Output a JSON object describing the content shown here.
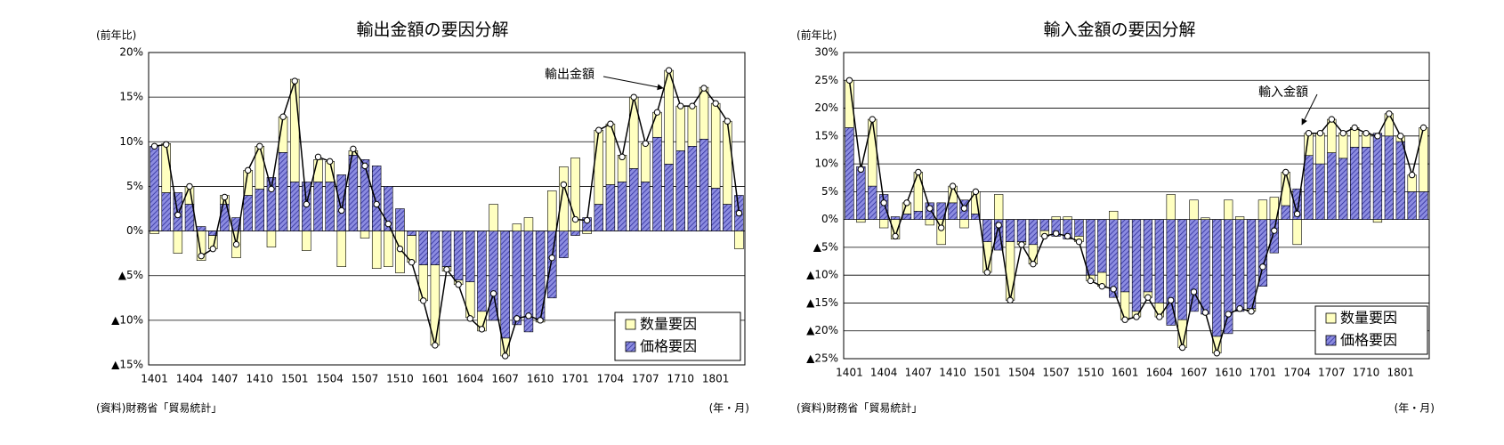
{
  "chart_data": [
    {
      "type": "bar",
      "title": "輸出金額の要因分解",
      "y_label": "(前年比)",
      "source": "(資料)財務省「貿易統計」",
      "x_label": "(年・月)",
      "categories": [
        "1401",
        null,
        null,
        "1404",
        null,
        null,
        "1407",
        null,
        null,
        "1410",
        null,
        null,
        "1501",
        null,
        null,
        "1504",
        null,
        null,
        "1507",
        null,
        null,
        "1510",
        null,
        null,
        "1601",
        null,
        null,
        "1604",
        null,
        null,
        "1607",
        null,
        null,
        "1610",
        null,
        null,
        "1701",
        null,
        null,
        "1704",
        null,
        null,
        "1707",
        null,
        null,
        "1710",
        null,
        null,
        "1801",
        null,
        null
      ],
      "series": [
        {
          "name": "数量要因",
          "color": "#ffffc0",
          "values": [
            -0.3,
            5.5,
            -2.5,
            2,
            -3.3,
            -1.5,
            1,
            -3,
            2.8,
            4.8,
            -1.8,
            4,
            11.5,
            -2.2,
            2.5,
            2.3,
            -4,
            0.5,
            -0.8,
            -4.2,
            -4,
            -4.7,
            -3,
            -4,
            -9,
            -0.5,
            -0.5,
            -4,
            -2.2,
            3,
            -2,
            0.8,
            1.5,
            -0.2,
            4.5,
            7.2,
            8.2,
            -0.3,
            8.3,
            6.8,
            3,
            8,
            4.3,
            2.8,
            10.5,
            5,
            4.5,
            5.8,
            9.5,
            9.3,
            -2
          ]
        },
        {
          "name": "価格要因",
          "color": "#8c8ce0",
          "hatch": true,
          "values": [
            9.5,
            4.3,
            4.3,
            3,
            0.5,
            -0.5,
            3,
            1.5,
            4,
            4.7,
            6,
            8.8,
            5.5,
            5.5,
            5.5,
            5.5,
            6.3,
            8.5,
            8,
            7.3,
            5,
            2.5,
            -0.5,
            -3.8,
            -3.8,
            -4,
            -5.5,
            -5.7,
            -9,
            -10,
            -12,
            -10.5,
            -11.3,
            -10,
            -7.5,
            -3,
            -0.5,
            1.5,
            3,
            5.2,
            5.5,
            7,
            5.5,
            10.5,
            7.5,
            9,
            9.5,
            10.3,
            4.8,
            3,
            4
          ]
        },
        {
          "name": "輸出金額",
          "type": "line",
          "color": "#000000",
          "values": [
            9.5,
            9.7,
            1.8,
            5,
            -2.8,
            -2,
            3.8,
            -1.5,
            6.8,
            9.5,
            4.7,
            12.8,
            16.8,
            3,
            8.3,
            7.8,
            2.3,
            9.2,
            7.3,
            3,
            0.8,
            -2,
            -3.5,
            -7.8,
            -12.8,
            -4.3,
            -6,
            -9.8,
            -11,
            -7,
            -14,
            -9.8,
            -9.5,
            -10,
            -3,
            5.2,
            1.3,
            1.2,
            11.3,
            12,
            8.3,
            15,
            9.8,
            13.3,
            18,
            14,
            14,
            16,
            14.3,
            12.3,
            2
          ]
        }
      ],
      "ylim": [
        -15,
        20
      ],
      "yticks": [
        {
          "value": 20,
          "label": "20%"
        },
        {
          "value": 15,
          "label": "15%"
        },
        {
          "value": 10,
          "label": "10%"
        },
        {
          "value": 5,
          "label": "5%"
        },
        {
          "value": 0,
          "label": "0%"
        },
        {
          "value": -5,
          "label": "▲5%"
        },
        {
          "value": -10,
          "label": "▲10%"
        },
        {
          "value": -15,
          "label": "▲15%"
        }
      ],
      "grid": true,
      "legend": "lower right"
    },
    {
      "type": "bar",
      "title": "輸入金額の要因分解",
      "y_label": "(前年比)",
      "source": "(資料)財務省「貿易統計」",
      "x_label": "(年・月)",
      "categories": [
        "1401",
        null,
        null,
        "1404",
        null,
        null,
        "1407",
        null,
        null,
        "1410",
        null,
        null,
        "1501",
        null,
        null,
        "1504",
        null,
        null,
        "1507",
        null,
        null,
        "1510",
        null,
        null,
        "1601",
        null,
        null,
        "1604",
        null,
        null,
        "1607",
        null,
        null,
        "1610",
        null,
        null,
        "1701",
        null,
        null,
        "1704",
        null,
        null,
        "1707",
        null,
        null,
        "1710",
        null,
        null,
        "1801",
        null,
        null
      ],
      "series": [
        {
          "name": "数量要因",
          "color": "#ffffc0",
          "values": [
            8.5,
            -0.5,
            12,
            -1.5,
            -3.5,
            2,
            7,
            -1,
            -4.5,
            3,
            -1.5,
            4,
            -5.5,
            4.5,
            -10.5,
            -0.5,
            -3.5,
            -1,
            0.5,
            0.5,
            -1,
            -1,
            -2.5,
            1.5,
            -5,
            -1,
            -1,
            -2.5,
            4.5,
            -5,
            3.5,
            0.3,
            -3,
            3.5,
            0.5,
            -0.5,
            3.5,
            4,
            6,
            -4.5,
            4,
            5.5,
            6,
            4.5,
            3.5,
            2.5,
            -0.5,
            4,
            1,
            3,
            11.5
          ]
        },
        {
          "name": "価格要因",
          "color": "#8c8ce0",
          "hatch": true,
          "values": [
            16.5,
            9.5,
            6,
            4.5,
            0.5,
            1,
            1.5,
            3,
            3,
            3,
            3.5,
            1,
            -4,
            -5.5,
            -4,
            -4,
            -4.5,
            -2,
            -3,
            -3.5,
            -3,
            -10,
            -9.5,
            -14,
            -13,
            -16.5,
            -13,
            -15,
            -19,
            -18,
            -16.5,
            -17,
            -21,
            -20.5,
            -16.5,
            -16,
            -12,
            -6,
            2.5,
            5.5,
            11.5,
            10,
            12,
            11,
            13,
            13,
            15.5,
            15,
            14,
            5,
            5
          ]
        },
        {
          "name": "輸入金額",
          "type": "line",
          "color": "#000000",
          "values": [
            25,
            9,
            18,
            3,
            -3,
            3,
            8.5,
            2,
            -1.5,
            6,
            2,
            5,
            -9.5,
            -1,
            -14.5,
            -4.5,
            -8,
            -3,
            -2.5,
            -3,
            -4,
            -11,
            -12,
            -12.5,
            -18,
            -17.5,
            -14,
            -17.5,
            -14.5,
            -23,
            -13,
            -16.7,
            -24,
            -17,
            -16,
            -16.5,
            -8.5,
            -2,
            8.5,
            1,
            15.5,
            15.5,
            18,
            15.5,
            16.5,
            15.5,
            15,
            19,
            15,
            8,
            16.5
          ]
        }
      ],
      "ylim": [
        -25,
        30
      ],
      "yticks": [
        {
          "value": 30,
          "label": "30%"
        },
        {
          "value": 25,
          "label": "25%"
        },
        {
          "value": 20,
          "label": "20%"
        },
        {
          "value": 15,
          "label": "15%"
        },
        {
          "value": 10,
          "label": "10%"
        },
        {
          "value": 5,
          "label": "5%"
        },
        {
          "value": 0,
          "label": "0%"
        },
        {
          "value": -5,
          "label": "▲5%"
        },
        {
          "value": -10,
          "label": "▲10%"
        },
        {
          "value": -15,
          "label": "▲15%"
        },
        {
          "value": -20,
          "label": "▲20%"
        },
        {
          "value": -25,
          "label": "▲25%"
        }
      ],
      "grid": true,
      "legend": "lower right"
    }
  ]
}
